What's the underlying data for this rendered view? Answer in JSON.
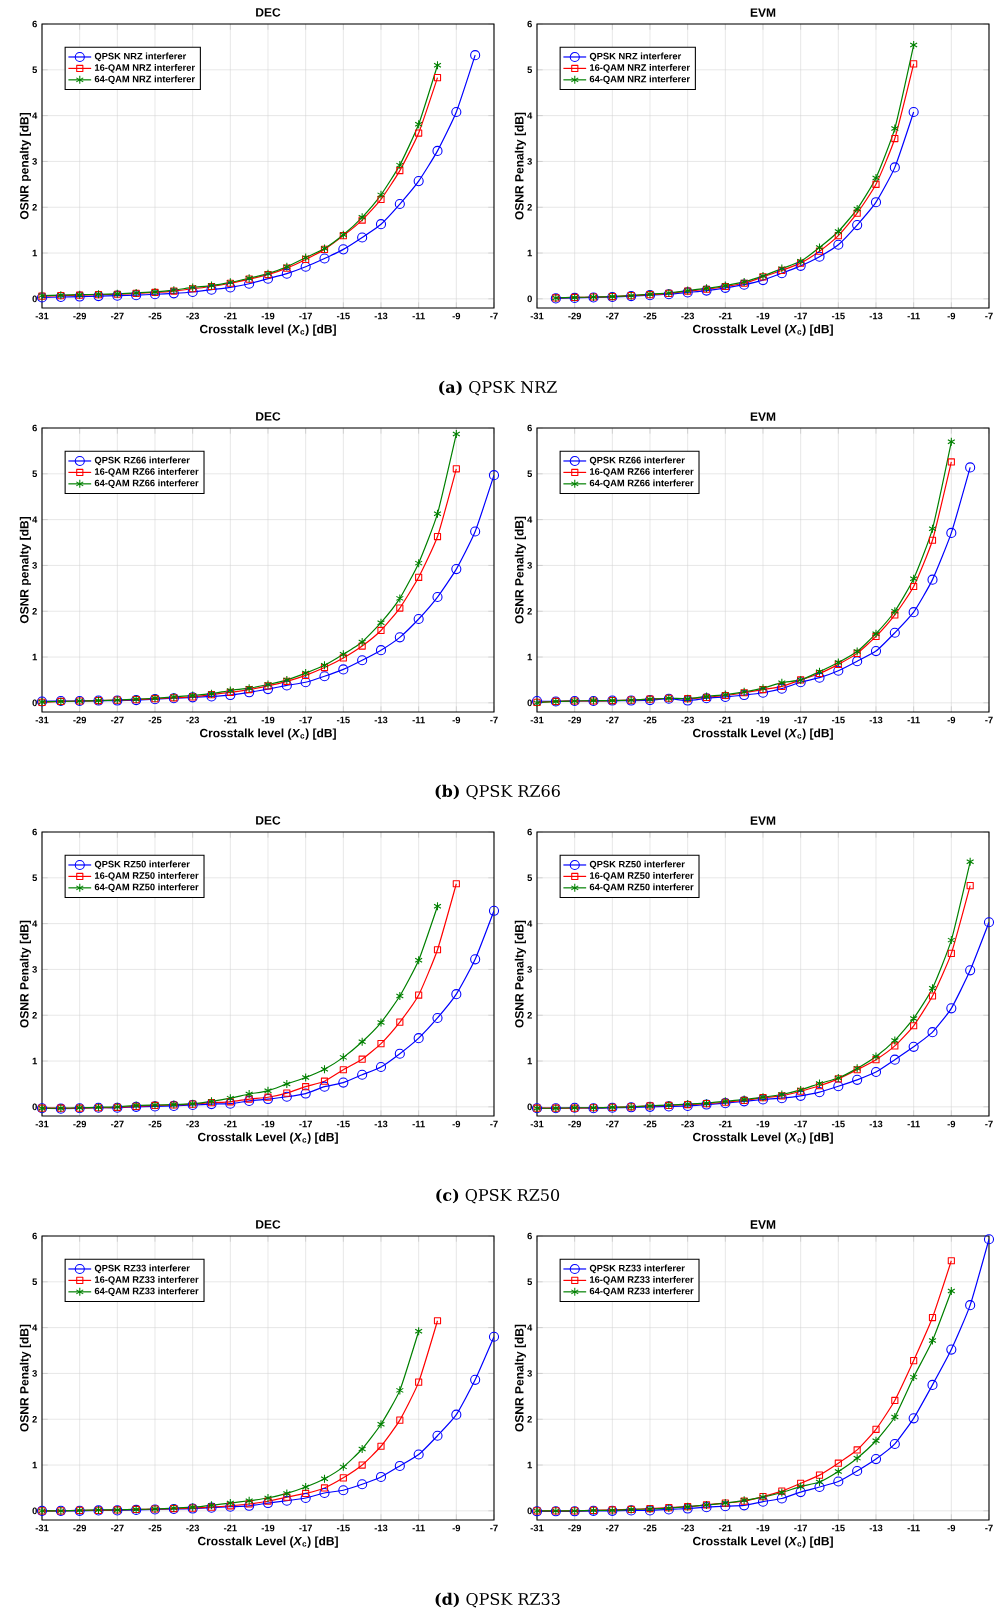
{
  "chart_data": [
    {
      "type": "line",
      "title": "DEC",
      "xlabel": "Crosstalk level (*X*$_{c}$) [dB]",
      "ylabel": "OSNR penalty [dB]",
      "annotations": [
        "**(a)** QPSK NRZ"
      ],
      "x": [
        -31,
        -30,
        -29,
        -28,
        -27,
        -26,
        -25,
        -24,
        -23,
        -22,
        -21,
        -20,
        -19,
        -18,
        -17,
        -16,
        -15,
        -14,
        -13,
        -12,
        -11,
        -10,
        -9,
        -8
      ],
      "xlim": [
        -31,
        -7
      ],
      "xticks": [
        -31,
        -29,
        -27,
        -25,
        -23,
        -21,
        -19,
        -17,
        -15,
        -13,
        -11,
        -9,
        -7
      ],
      "ylim": [
        -0.2,
        6
      ],
      "yticks": [
        0,
        1,
        2,
        3,
        4,
        5,
        6
      ],
      "grid": true,
      "legend": "top left",
      "series": [
        {
          "name": "QPSK NRZ interferer",
          "color": "#0000ff",
          "marker": "circle",
          "values": [
            0.03,
            0.04,
            0.05,
            0.06,
            0.07,
            0.08,
            0.1,
            0.12,
            0.15,
            0.2,
            0.25,
            0.33,
            0.44,
            0.55,
            0.7,
            0.88,
            1.08,
            1.34,
            1.63,
            2.07,
            2.57,
            3.23,
            4.08,
            5.32
          ]
        },
        {
          "name": "16-QAM NRZ interferer",
          "color": "#ff0000",
          "marker": "square",
          "values": [
            0.06,
            0.07,
            0.08,
            0.09,
            0.1,
            0.12,
            0.14,
            0.17,
            0.22,
            0.27,
            0.34,
            0.43,
            0.53,
            0.67,
            0.86,
            1.08,
            1.38,
            1.72,
            2.17,
            2.8,
            3.62,
            4.83,
            null,
            null
          ]
        },
        {
          "name": "64-QAM NRZ interferer",
          "color": "#008000",
          "marker": "cross",
          "values": [
            0.07,
            0.08,
            0.09,
            0.1,
            0.11,
            0.13,
            0.15,
            0.19,
            0.25,
            0.29,
            0.36,
            0.45,
            0.55,
            0.7,
            0.9,
            1.1,
            1.4,
            1.78,
            2.27,
            2.92,
            3.81,
            5.1,
            null,
            null
          ]
        }
      ]
    },
    {
      "type": "line",
      "title": "EVM",
      "xlabel": "Crosstalk Level (*X*$_{c}$) [dB]",
      "ylabel": "OSNR Penalty [dB]",
      "x": [
        -30,
        -29,
        -28,
        -27,
        -26,
        -25,
        -24,
        -23,
        -22,
        -21,
        -20,
        -19,
        -18,
        -17,
        -16,
        -15,
        -14,
        -13,
        -12,
        -11
      ],
      "xlim": [
        -31,
        -7
      ],
      "xticks": [
        -31,
        -29,
        -27,
        -25,
        -23,
        -21,
        -19,
        -17,
        -15,
        -13,
        -11,
        -9,
        -7
      ],
      "ylim": [
        -0.2,
        6
      ],
      "yticks": [
        0,
        1,
        2,
        3,
        4,
        5,
        6
      ],
      "grid": true,
      "legend": "top left",
      "series": [
        {
          "name": "QPSK NRZ interferer",
          "color": "#0000ff",
          "marker": "circle",
          "values": [
            0.01,
            0.02,
            0.03,
            0.04,
            0.06,
            0.08,
            0.1,
            0.14,
            0.18,
            0.24,
            0.31,
            0.41,
            0.56,
            0.72,
            0.92,
            1.18,
            1.61,
            2.11,
            2.87,
            4.08
          ]
        },
        {
          "name": "16-QAM NRZ interferer",
          "color": "#ff0000",
          "marker": "square",
          "values": [
            0.02,
            0.03,
            0.04,
            0.05,
            0.07,
            0.09,
            0.12,
            0.17,
            0.21,
            0.27,
            0.34,
            0.48,
            0.62,
            0.78,
            1.04,
            1.38,
            1.87,
            2.5,
            3.5,
            5.13
          ]
        },
        {
          "name": "64-QAM NRZ interferer",
          "color": "#008000",
          "marker": "cross",
          "values": [
            0.02,
            0.03,
            0.04,
            0.05,
            0.07,
            0.1,
            0.13,
            0.18,
            0.23,
            0.29,
            0.37,
            0.5,
            0.66,
            0.82,
            1.12,
            1.47,
            1.96,
            2.64,
            3.72,
            5.54
          ]
        }
      ]
    },
    {
      "type": "line",
      "title": "DEC",
      "xlabel": "Crosstalk level (*X*$_{c}$) [dB]",
      "ylabel": "OSNR penalty [dB]",
      "annotations": [
        "**(b)** QPSK RZ66"
      ],
      "x": [
        -31,
        -30,
        -29,
        -28,
        -27,
        -26,
        -25,
        -24,
        -23,
        -22,
        -21,
        -20,
        -19,
        -18,
        -17,
        -16,
        -15,
        -14,
        -13,
        -12,
        -11,
        -10,
        -9,
        -8,
        -7
      ],
      "xlim": [
        -31,
        -7
      ],
      "xticks": [
        -31,
        -29,
        -27,
        -25,
        -23,
        -21,
        -19,
        -17,
        -15,
        -13,
        -11,
        -9,
        -7
      ],
      "ylim": [
        -0.2,
        6
      ],
      "yticks": [
        0,
        1,
        2,
        3,
        4,
        5,
        6
      ],
      "grid": true,
      "legend": "top left",
      "series": [
        {
          "name": "QPSK RZ66 interferer",
          "color": "#0000ff",
          "marker": "circle",
          "values": [
            0.03,
            0.04,
            0.04,
            0.05,
            0.05,
            0.06,
            0.08,
            0.1,
            0.12,
            0.14,
            0.17,
            0.23,
            0.3,
            0.38,
            0.45,
            0.58,
            0.73,
            0.93,
            1.15,
            1.43,
            1.83,
            2.31,
            2.92,
            3.74,
            4.97
          ]
        },
        {
          "name": "16-QAM RZ66 interferer",
          "color": "#ff0000",
          "marker": "square",
          "values": [
            0.01,
            0.03,
            0.04,
            0.05,
            0.06,
            0.07,
            0.09,
            0.11,
            0.13,
            0.18,
            0.23,
            0.29,
            0.37,
            0.47,
            0.6,
            0.77,
            0.98,
            1.24,
            1.58,
            2.07,
            2.74,
            3.63,
            5.11,
            null,
            null
          ]
        },
        {
          "name": "64-QAM RZ66 interferer",
          "color": "#008000",
          "marker": "cross",
          "values": [
            0.02,
            0.03,
            0.04,
            0.05,
            0.06,
            0.08,
            0.1,
            0.13,
            0.16,
            0.2,
            0.27,
            0.32,
            0.4,
            0.5,
            0.65,
            0.82,
            1.06,
            1.33,
            1.75,
            2.28,
            3.05,
            4.13,
            5.87,
            null,
            null
          ]
        }
      ]
    },
    {
      "type": "line",
      "title": "EVM",
      "xlabel": "Crosstalk Level (*X*$_{c}$) [dB]",
      "ylabel": "OSNR Penalty [dB]",
      "x": [
        -31,
        -30,
        -29,
        -28,
        -27,
        -26,
        -25,
        -24,
        -23,
        -22,
        -21,
        -20,
        -19,
        -18,
        -17,
        -16,
        -15,
        -14,
        -13,
        -12,
        -11,
        -10,
        -9,
        -8
      ],
      "xlim": [
        -31,
        -7
      ],
      "xticks": [
        -31,
        -29,
        -27,
        -25,
        -23,
        -21,
        -19,
        -17,
        -15,
        -13,
        -11,
        -9,
        -7
      ],
      "ylim": [
        -0.2,
        6
      ],
      "yticks": [
        0,
        1,
        2,
        3,
        4,
        5,
        6
      ],
      "grid": true,
      "legend": "top left",
      "series": [
        {
          "name": "QPSK RZ66 interferer",
          "color": "#0000ff",
          "marker": "circle",
          "values": [
            0.04,
            0.03,
            0.04,
            0.04,
            0.05,
            0.05,
            0.06,
            0.09,
            0.05,
            0.1,
            0.13,
            0.17,
            0.22,
            0.31,
            0.45,
            0.55,
            0.7,
            0.91,
            1.13,
            1.53,
            1.98,
            2.69,
            3.71,
            5.14
          ]
        },
        {
          "name": "16-QAM RZ66 interferer",
          "color": "#ff0000",
          "marker": "square",
          "values": [
            0.01,
            0.03,
            0.04,
            0.04,
            0.05,
            0.06,
            0.08,
            0.1,
            0.09,
            0.12,
            0.16,
            0.22,
            0.29,
            0.36,
            0.5,
            0.64,
            0.84,
            1.08,
            1.45,
            1.92,
            2.54,
            3.55,
            5.26,
            null
          ]
        },
        {
          "name": "64-QAM RZ66 interferer",
          "color": "#008000",
          "marker": "cross",
          "values": [
            0.0,
            0.03,
            0.04,
            0.05,
            0.05,
            0.06,
            0.08,
            0.1,
            0.09,
            0.14,
            0.18,
            0.24,
            0.32,
            0.44,
            0.5,
            0.68,
            0.88,
            1.12,
            1.51,
            2.0,
            2.71,
            3.8,
            5.7,
            null
          ]
        }
      ]
    },
    {
      "type": "line",
      "title": "DEC",
      "xlabel": "Crosstalk Level (*X*$_{c}$) [dB]",
      "ylabel": "OSNR Penalty [dB]",
      "annotations": [
        "**(c)** QPSK RZ50"
      ],
      "x": [
        -31,
        -30,
        -29,
        -28,
        -27,
        -26,
        -25,
        -24,
        -23,
        -22,
        -21,
        -20,
        -19,
        -18,
        -17,
        -16,
        -15,
        -14,
        -13,
        -12,
        -11,
        -10,
        -9,
        -8,
        -7
      ],
      "xlim": [
        -31,
        -7
      ],
      "xticks": [
        -31,
        -29,
        -27,
        -25,
        -23,
        -21,
        -19,
        -17,
        -15,
        -13,
        -11,
        -9,
        -7
      ],
      "ylim": [
        -0.2,
        6
      ],
      "yticks": [
        0,
        1,
        2,
        3,
        4,
        5,
        6
      ],
      "grid": true,
      "legend": "top left",
      "series": [
        {
          "name": "QPSK RZ50 interferer",
          "color": "#0000ff",
          "marker": "circle",
          "values": [
            -0.03,
            -0.04,
            -0.03,
            -0.02,
            -0.02,
            0.0,
            0.01,
            0.02,
            0.04,
            0.06,
            0.07,
            0.13,
            0.17,
            0.22,
            0.29,
            0.44,
            0.53,
            0.7,
            0.87,
            1.16,
            1.5,
            1.94,
            2.46,
            3.22,
            4.28
          ]
        },
        {
          "name": "16-QAM RZ50 interferer",
          "color": "#ff0000",
          "marker": "square",
          "values": [
            -0.03,
            -0.03,
            -0.03,
            -0.02,
            -0.01,
            0.01,
            0.03,
            0.04,
            0.06,
            0.09,
            0.11,
            0.17,
            0.21,
            0.3,
            0.44,
            0.56,
            0.81,
            1.04,
            1.38,
            1.85,
            2.44,
            3.43,
            4.87,
            null,
            null
          ]
        },
        {
          "name": "64-QAM RZ50 interferer",
          "color": "#008000",
          "marker": "cross",
          "values": [
            -0.03,
            -0.03,
            -0.02,
            -0.01,
            0.0,
            0.03,
            0.04,
            0.05,
            0.07,
            0.12,
            0.19,
            0.28,
            0.35,
            0.5,
            0.64,
            0.82,
            1.08,
            1.42,
            1.84,
            2.42,
            3.2,
            4.38,
            null,
            null,
            null
          ]
        }
      ]
    },
    {
      "type": "line",
      "title": "EVM",
      "xlabel": "Crosstalk Level (*X*$_{c}$) [dB]",
      "ylabel": "OSNR Penalty [dB]",
      "x": [
        -31,
        -30,
        -29,
        -28,
        -27,
        -26,
        -25,
        -24,
        -23,
        -22,
        -21,
        -20,
        -19,
        -18,
        -17,
        -16,
        -15,
        -14,
        -13,
        -12,
        -11,
        -10,
        -9,
        -8,
        -7
      ],
      "xlim": [
        -31,
        -7
      ],
      "xticks": [
        -31,
        -29,
        -27,
        -25,
        -23,
        -21,
        -19,
        -17,
        -15,
        -13,
        -11,
        -9,
        -7
      ],
      "ylim": [
        -0.2,
        6
      ],
      "yticks": [
        0,
        1,
        2,
        3,
        4,
        5,
        6
      ],
      "grid": true,
      "legend": "top left",
      "series": [
        {
          "name": "QPSK RZ50 interferer",
          "color": "#0000ff",
          "marker": "circle",
          "values": [
            -0.03,
            -0.03,
            -0.02,
            -0.03,
            -0.02,
            -0.01,
            0.0,
            0.01,
            0.02,
            0.05,
            0.08,
            0.12,
            0.16,
            0.19,
            0.24,
            0.32,
            0.45,
            0.59,
            0.76,
            1.03,
            1.31,
            1.63,
            2.15,
            2.98,
            4.03
          ]
        },
        {
          "name": "16-QAM RZ50 interferer",
          "color": "#ff0000",
          "marker": "square",
          "values": [
            -0.03,
            -0.03,
            -0.03,
            -0.02,
            -0.01,
            0.0,
            0.02,
            0.03,
            0.05,
            0.07,
            0.1,
            0.14,
            0.2,
            0.24,
            0.34,
            0.46,
            0.61,
            0.81,
            1.03,
            1.33,
            1.77,
            2.42,
            3.35,
            4.83,
            null
          ]
        },
        {
          "name": "64-QAM RZ50 interferer",
          "color": "#008000",
          "marker": "cross",
          "values": [
            -0.03,
            -0.03,
            -0.02,
            -0.02,
            -0.01,
            0.0,
            0.02,
            0.04,
            0.06,
            0.08,
            0.12,
            0.16,
            0.21,
            0.27,
            0.37,
            0.51,
            0.63,
            0.84,
            1.1,
            1.45,
            1.93,
            2.59,
            3.64,
            5.35,
            null
          ]
        }
      ]
    },
    {
      "type": "line",
      "title": "DEC",
      "xlabel": "Crosstalk Level (*X*$_{c}$) [dB]",
      "ylabel": "OSNR Penalty [dB]",
      "annotations": [
        "**(d)** QPSK RZ33"
      ],
      "x": [
        -31,
        -30,
        -29,
        -28,
        -27,
        -26,
        -25,
        -24,
        -23,
        -22,
        -21,
        -20,
        -19,
        -18,
        -17,
        -16,
        -15,
        -14,
        -13,
        -12,
        -11,
        -10,
        -9,
        -8,
        -7
      ],
      "xlim": [
        -31,
        -7
      ],
      "xticks": [
        -31,
        -29,
        -27,
        -25,
        -23,
        -21,
        -19,
        -17,
        -15,
        -13,
        -11,
        -9,
        -7
      ],
      "ylim": [
        -0.2,
        6
      ],
      "yticks": [
        0,
        1,
        2,
        3,
        4,
        5,
        6
      ],
      "grid": true,
      "legend": "top left",
      "series": [
        {
          "name": "QPSK RZ33 interferer",
          "color": "#0000ff",
          "marker": "circle",
          "values": [
            0.0,
            0.0,
            0.0,
            0.01,
            0.01,
            0.02,
            0.03,
            0.04,
            0.05,
            0.07,
            0.09,
            0.11,
            0.17,
            0.22,
            0.28,
            0.39,
            0.45,
            0.58,
            0.74,
            0.98,
            1.23,
            1.64,
            2.1,
            2.86,
            3.8
          ]
        },
        {
          "name": "16-QAM RZ33 interferer",
          "color": "#ff0000",
          "marker": "square",
          "values": [
            0.0,
            0.0,
            0.01,
            0.01,
            0.02,
            0.03,
            0.04,
            0.05,
            0.06,
            0.08,
            0.11,
            0.15,
            0.21,
            0.3,
            0.38,
            0.5,
            0.72,
            1.0,
            1.41,
            1.98,
            2.81,
            4.15,
            null,
            null,
            null
          ]
        },
        {
          "name": "64-QAM RZ33 interferer",
          "color": "#008000",
          "marker": "cross",
          "values": [
            0.0,
            0.0,
            0.01,
            0.02,
            0.02,
            0.03,
            0.04,
            0.06,
            0.08,
            0.12,
            0.17,
            0.22,
            0.28,
            0.38,
            0.52,
            0.7,
            0.96,
            1.35,
            1.89,
            2.63,
            3.92,
            null,
            null,
            null,
            null
          ]
        }
      ]
    },
    {
      "type": "line",
      "title": "EVM",
      "xlabel": "Crosstalk Level (*X*$_{c}$) [dB]",
      "ylabel": "OSNR Penalty [dB]",
      "x": [
        -31,
        -30,
        -29,
        -28,
        -27,
        -26,
        -25,
        -24,
        -23,
        -22,
        -21,
        -20,
        -19,
        -18,
        -17,
        -16,
        -15,
        -14,
        -13,
        -12,
        -11,
        -10,
        -9,
        -8,
        -7
      ],
      "xlim": [
        -31,
        -7
      ],
      "xticks": [
        -31,
        -29,
        -27,
        -25,
        -23,
        -21,
        -19,
        -17,
        -15,
        -13,
        -11,
        -9,
        -7
      ],
      "ylim": [
        -0.2,
        6
      ],
      "yticks": [
        0,
        1,
        2,
        3,
        4,
        5,
        6
      ],
      "grid": true,
      "legend": "top left",
      "series": [
        {
          "name": "QPSK RZ33 interferer",
          "color": "#0000ff",
          "marker": "circle",
          "values": [
            -0.01,
            -0.01,
            -0.01,
            0.0,
            0.0,
            0.01,
            0.01,
            0.03,
            0.05,
            0.08,
            0.1,
            0.12,
            0.2,
            0.27,
            0.41,
            0.52,
            0.64,
            0.87,
            1.13,
            1.46,
            2.02,
            2.75,
            3.52,
            4.49,
            5.93
          ]
        },
        {
          "name": "16-QAM RZ33 interferer",
          "color": "#ff0000",
          "marker": "square",
          "values": [
            0.0,
            0.0,
            0.0,
            0.01,
            0.02,
            0.03,
            0.05,
            0.07,
            0.09,
            0.13,
            0.17,
            0.21,
            0.31,
            0.43,
            0.6,
            0.78,
            1.04,
            1.33,
            1.78,
            2.41,
            3.28,
            4.22,
            5.46,
            null,
            null
          ]
        },
        {
          "name": "64-QAM RZ33 interferer",
          "color": "#008000",
          "marker": "cross",
          "values": [
            0.0,
            0.0,
            0.0,
            0.01,
            0.01,
            0.03,
            0.04,
            0.06,
            0.09,
            0.13,
            0.17,
            0.23,
            0.3,
            0.4,
            0.53,
            0.63,
            0.86,
            1.15,
            1.53,
            2.05,
            2.92,
            3.72,
            4.8,
            null,
            null
          ]
        }
      ]
    }
  ]
}
